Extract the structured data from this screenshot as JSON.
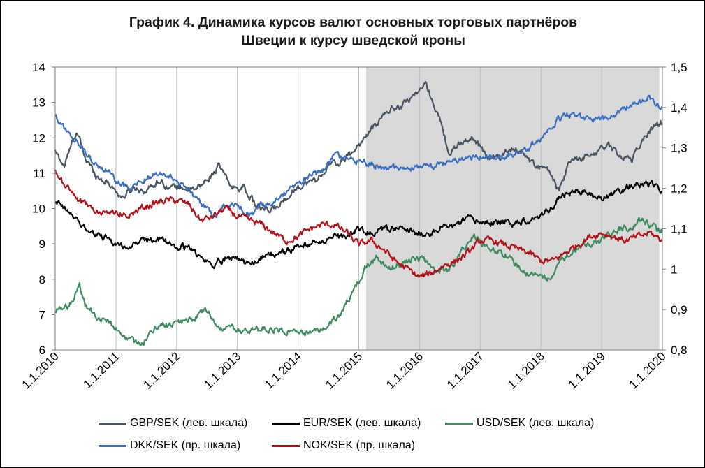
{
  "chart_data": {
    "type": "line",
    "title": [
      "График 4. Динамика курсов валют основных торговых партнёров",
      "Швеции к курсу шведской кроны"
    ],
    "x_ticks": [
      "1.1.2010",
      "1.1.2011",
      "1.1.2012",
      "1.1.2013",
      "1.1.2014",
      "1.1.2015",
      "1.1.2016",
      "1.1.2017",
      "1.1.2018",
      "1.1.2019",
      "1.1.2020"
    ],
    "y_left": {
      "range": [
        6,
        14
      ],
      "ticks": [
        "6",
        "7",
        "8",
        "9",
        "10",
        "11",
        "12",
        "13",
        "14"
      ]
    },
    "y_right": {
      "range": [
        0.8,
        1.5
      ],
      "ticks": [
        "0,8",
        "0,9",
        "1",
        "1,1",
        "1,2",
        "1,3",
        "1,4",
        "1,5"
      ]
    },
    "grid": "vertical yearly lines",
    "shaded_period": {
      "from": "2015.12",
      "to": "2019.95",
      "color": "#d9d9d9"
    },
    "legend_position": "bottom",
    "series": [
      {
        "name": "GBP/SEK (лев. шкала)",
        "axis": "left",
        "color": "#4a5563",
        "x": [
          2010.0,
          2010.15,
          2010.35,
          2010.5,
          2010.7,
          2010.9,
          2011.1,
          2011.3,
          2011.5,
          2011.7,
          2011.9,
          2012.1,
          2012.3,
          2012.5,
          2012.7,
          2012.9,
          2013.1,
          2013.3,
          2013.5,
          2013.7,
          2013.9,
          2014.1,
          2014.3,
          2014.5,
          2014.7,
          2014.9,
          2015.1,
          2015.3,
          2015.5,
          2015.7,
          2015.9,
          2016.1,
          2016.3,
          2016.5,
          2016.7,
          2016.9,
          2017.1,
          2017.3,
          2017.5,
          2017.7,
          2017.9,
          2018.1,
          2018.3,
          2018.5,
          2018.7,
          2018.9,
          2019.1,
          2019.3,
          2019.5,
          2019.7,
          2019.9,
          2020.0
        ],
        "y": [
          11.6,
          11.2,
          12.2,
          11.4,
          10.9,
          10.7,
          10.3,
          10.6,
          10.5,
          10.8,
          10.6,
          10.6,
          10.5,
          10.8,
          11.2,
          10.6,
          10.6,
          10.1,
          9.9,
          10.1,
          10.5,
          10.7,
          10.8,
          11.2,
          11.3,
          11.6,
          12.0,
          12.4,
          12.8,
          12.9,
          13.2,
          13.5,
          12.7,
          11.5,
          11.9,
          12.0,
          11.5,
          11.4,
          11.7,
          11.6,
          11.2,
          11.1,
          10.5,
          11.4,
          11.4,
          11.6,
          11.8,
          11.5,
          11.4,
          12.0,
          12.4,
          12.4
        ]
      },
      {
        "name": "EUR/SEK (лев. шкала)",
        "axis": "left",
        "color": "#000000",
        "x": [
          2010.0,
          2010.2,
          2010.4,
          2010.6,
          2010.8,
          2011.0,
          2011.2,
          2011.4,
          2011.6,
          2011.8,
          2012.0,
          2012.2,
          2012.4,
          2012.6,
          2012.8,
          2013.0,
          2013.2,
          2013.4,
          2013.6,
          2013.8,
          2014.0,
          2014.2,
          2014.4,
          2014.6,
          2014.8,
          2015.0,
          2015.2,
          2015.4,
          2015.6,
          2015.8,
          2016.0,
          2016.2,
          2016.4,
          2016.6,
          2016.8,
          2017.0,
          2017.2,
          2017.4,
          2017.6,
          2017.8,
          2018.0,
          2018.2,
          2018.4,
          2018.6,
          2018.8,
          2019.0,
          2019.2,
          2019.4,
          2019.6,
          2019.8,
          2020.0
        ],
        "y": [
          10.2,
          9.9,
          9.6,
          9.3,
          9.2,
          9.0,
          8.9,
          9.1,
          9.1,
          9.1,
          8.9,
          8.9,
          8.6,
          8.4,
          8.6,
          8.6,
          8.4,
          8.6,
          8.7,
          8.8,
          8.9,
          9.0,
          9.1,
          9.2,
          9.2,
          9.4,
          9.3,
          9.4,
          9.4,
          9.4,
          9.3,
          9.3,
          9.5,
          9.5,
          9.7,
          9.6,
          9.6,
          9.6,
          9.6,
          9.7,
          9.8,
          10.1,
          10.4,
          10.5,
          10.4,
          10.3,
          10.4,
          10.6,
          10.7,
          10.7,
          10.5
        ]
      },
      {
        "name": "USD/SEK (лев. шкала)",
        "axis": "left",
        "color": "#3d8c60",
        "x": [
          2010.0,
          2010.2,
          2010.4,
          2010.5,
          2010.7,
          2010.9,
          2011.1,
          2011.3,
          2011.5,
          2011.7,
          2011.9,
          2012.1,
          2012.3,
          2012.5,
          2012.7,
          2012.9,
          2013.1,
          2013.3,
          2013.5,
          2013.7,
          2013.9,
          2014.1,
          2014.3,
          2014.5,
          2014.7,
          2014.9,
          2015.1,
          2015.3,
          2015.5,
          2015.7,
          2015.9,
          2016.1,
          2016.3,
          2016.5,
          2016.7,
          2016.9,
          2017.1,
          2017.3,
          2017.5,
          2017.7,
          2017.9,
          2018.1,
          2018.3,
          2018.5,
          2018.7,
          2018.9,
          2019.1,
          2019.3,
          2019.5,
          2019.7,
          2019.9,
          2020.0
        ],
        "y": [
          7.1,
          7.2,
          7.8,
          7.3,
          6.9,
          6.8,
          6.4,
          6.2,
          6.3,
          6.7,
          6.7,
          6.8,
          6.9,
          7.1,
          6.6,
          6.6,
          6.5,
          6.6,
          6.6,
          6.6,
          6.5,
          6.5,
          6.5,
          6.7,
          7.0,
          7.6,
          8.3,
          8.6,
          8.3,
          8.4,
          8.6,
          8.5,
          8.2,
          8.3,
          8.8,
          9.2,
          8.9,
          8.8,
          8.6,
          8.2,
          8.1,
          8.0,
          8.4,
          8.8,
          9.0,
          9.0,
          9.2,
          9.4,
          9.5,
          9.7,
          9.4,
          9.4
        ]
      },
      {
        "name": "DKK/SEK (пр. шкала)",
        "axis": "right",
        "color": "#3a6fc2",
        "x": [
          2010.0,
          2010.2,
          2010.4,
          2010.6,
          2010.8,
          2011.0,
          2011.2,
          2011.4,
          2011.6,
          2011.8,
          2012.0,
          2012.2,
          2012.4,
          2012.6,
          2012.8,
          2013.0,
          2013.2,
          2013.4,
          2013.6,
          2013.8,
          2014.0,
          2014.2,
          2014.4,
          2014.6,
          2014.8,
          2015.0,
          2015.2,
          2015.4,
          2015.6,
          2015.8,
          2016.0,
          2016.2,
          2016.4,
          2016.6,
          2016.8,
          2017.0,
          2017.2,
          2017.4,
          2017.6,
          2017.8,
          2018.0,
          2018.2,
          2018.4,
          2018.6,
          2018.8,
          2019.0,
          2019.2,
          2019.4,
          2019.6,
          2019.8,
          2020.0
        ],
        "y": [
          1.38,
          1.34,
          1.31,
          1.27,
          1.25,
          1.22,
          1.2,
          1.22,
          1.23,
          1.24,
          1.22,
          1.2,
          1.16,
          1.13,
          1.16,
          1.16,
          1.13,
          1.16,
          1.17,
          1.19,
          1.21,
          1.23,
          1.24,
          1.28,
          1.28,
          1.27,
          1.26,
          1.25,
          1.25,
          1.25,
          1.25,
          1.25,
          1.26,
          1.27,
          1.28,
          1.28,
          1.28,
          1.28,
          1.29,
          1.3,
          1.32,
          1.36,
          1.38,
          1.38,
          1.37,
          1.37,
          1.38,
          1.4,
          1.41,
          1.42,
          1.4
        ]
      },
      {
        "name": "NOK/SEK (пр. шкала)",
        "axis": "right",
        "color": "#b3121a",
        "x": [
          2010.0,
          2010.2,
          2010.4,
          2010.6,
          2010.8,
          2011.0,
          2011.2,
          2011.4,
          2011.6,
          2011.8,
          2012.0,
          2012.2,
          2012.4,
          2012.6,
          2012.8,
          2013.0,
          2013.2,
          2013.4,
          2013.6,
          2013.8,
          2014.0,
          2014.2,
          2014.4,
          2014.6,
          2014.8,
          2015.0,
          2015.2,
          2015.4,
          2015.6,
          2015.8,
          2016.0,
          2016.2,
          2016.4,
          2016.6,
          2016.8,
          2017.0,
          2017.2,
          2017.4,
          2017.6,
          2017.8,
          2018.0,
          2018.2,
          2018.4,
          2018.6,
          2018.8,
          2019.0,
          2019.2,
          2019.4,
          2019.6,
          2019.8,
          2020.0
        ],
        "y": [
          1.24,
          1.2,
          1.17,
          1.15,
          1.14,
          1.14,
          1.13,
          1.15,
          1.16,
          1.17,
          1.17,
          1.16,
          1.12,
          1.13,
          1.15,
          1.13,
          1.12,
          1.11,
          1.09,
          1.07,
          1.08,
          1.1,
          1.11,
          1.11,
          1.09,
          1.06,
          1.07,
          1.05,
          1.02,
          1.0,
          0.98,
          0.99,
          1.01,
          1.02,
          1.04,
          1.07,
          1.07,
          1.06,
          1.05,
          1.04,
          1.02,
          1.02,
          1.04,
          1.06,
          1.08,
          1.09,
          1.08,
          1.07,
          1.08,
          1.09,
          1.07
        ]
      }
    ]
  }
}
